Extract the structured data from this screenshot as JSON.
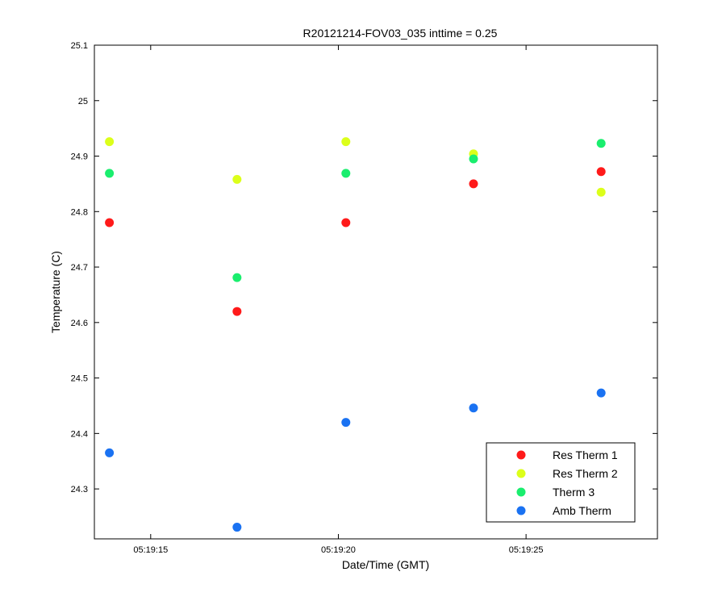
{
  "chart_data": {
    "type": "scatter",
    "title": "R20121214-FOV03_035 inttime = 0.25",
    "xlabel": "Date/Time (GMT)",
    "ylabel": "Temperature (C)",
    "x_unit": "time",
    "xlim": [
      "05:19:13.5",
      "05:19:28.5"
    ],
    "ylim": [
      24.21,
      25.1
    ],
    "x_ticks": [
      "05:19:15",
      "05:19:20",
      "05:19:25"
    ],
    "y_ticks": [
      "24.3",
      "24.4",
      "24.5",
      "24.6",
      "24.7",
      "24.8",
      "24.9",
      "25",
      "25.1"
    ],
    "x": [
      "05:19:13.9",
      "05:19:17.3",
      "05:19:20.2",
      "05:19:23.6",
      "05:19:27.0"
    ],
    "series": [
      {
        "name": "Res Therm 1",
        "color": "#ff1a1a",
        "values": [
          24.78,
          24.62,
          24.78,
          24.85,
          24.872
        ]
      },
      {
        "name": "Res Therm 2",
        "color": "#dcff1a",
        "values": [
          24.926,
          24.858,
          24.926,
          24.904,
          24.835
        ]
      },
      {
        "name": "Therm 3",
        "color": "#1aee6e",
        "values": [
          24.869,
          24.681,
          24.869,
          24.895,
          24.923
        ]
      },
      {
        "name": "Amb Therm",
        "color": "#1a72f2",
        "values": [
          24.365,
          24.231,
          24.42,
          24.446,
          24.473
        ]
      }
    ],
    "grid": false,
    "legend_position": "bottom-right"
  }
}
